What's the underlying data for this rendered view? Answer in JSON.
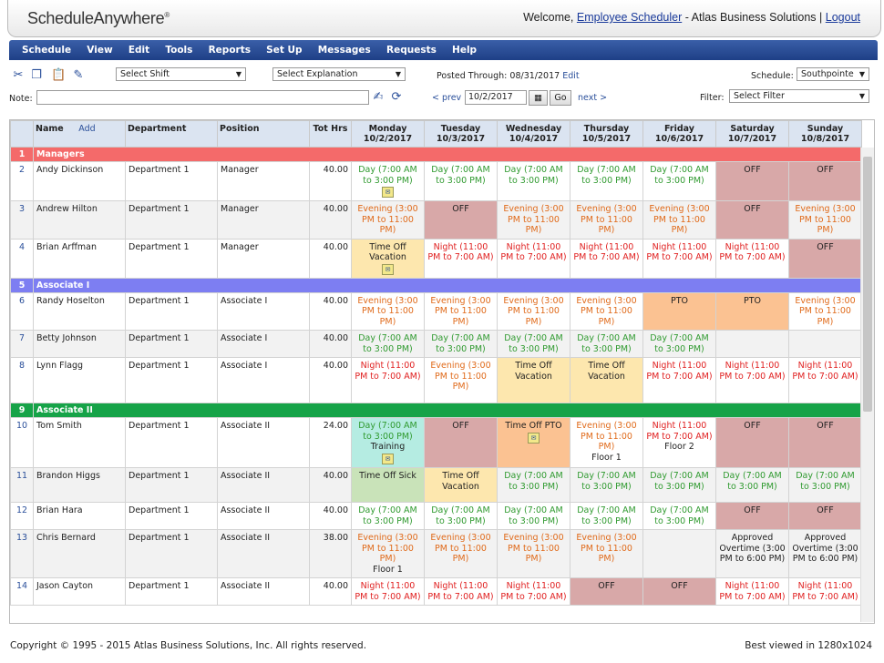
{
  "header": {
    "logo": "ScheduleAnywhere",
    "logo_mark": "®",
    "welcome_prefix": "Welcome,",
    "user": "Employee Scheduler",
    "company": "- Atlas Business Solutions |",
    "logout": "Logout"
  },
  "menu": [
    "Schedule",
    "View",
    "Edit",
    "Tools",
    "Reports",
    "Set Up",
    "Messages",
    "Requests",
    "Help"
  ],
  "toolbar": {
    "select_shift": "Select Shift",
    "select_explanation": "Select Explanation",
    "posted_label": "Posted Through:",
    "posted_date": "08/31/2017",
    "edit_link": "Edit",
    "schedule_label": "Schedule:",
    "schedule_value": "Southpointe",
    "note_label": "Note:",
    "prev": "< prev",
    "date": "10/2/2017",
    "go": "Go",
    "next": "next >",
    "filter_label": "Filter:",
    "filter_value": "Select Filter"
  },
  "columns": {
    "name": "Name",
    "add": "Add",
    "department": "Department",
    "position": "Position",
    "tot_hrs": "Tot Hrs",
    "days": [
      {
        "day": "Monday",
        "date": "10/2/2017"
      },
      {
        "day": "Tuesday",
        "date": "10/3/2017"
      },
      {
        "day": "Wednesday",
        "date": "10/4/2017"
      },
      {
        "day": "Thursday",
        "date": "10/5/2017"
      },
      {
        "day": "Friday",
        "date": "10/6/2017"
      },
      {
        "day": "Saturday",
        "date": "10/7/2017"
      },
      {
        "day": "Sunday",
        "date": "10/8/2017"
      }
    ]
  },
  "colors": {
    "managers": "#f46a6a",
    "associate1": "#7d7ef2",
    "associate2": "#16a348"
  },
  "rows": [
    {
      "type": "group",
      "num": "1",
      "label": "Managers",
      "color": "#f46a6a"
    },
    {
      "type": "emp",
      "num": "2",
      "name": "Andy Dickinson",
      "dept": "Department 1",
      "pos": "Manager",
      "hrs": "40.00",
      "cells": [
        {
          "cls": "day",
          "text": "Day (7:00 AM to 3:00 PM)",
          "note": true
        },
        {
          "cls": "day",
          "text": "Day (7:00 AM to 3:00 PM)"
        },
        {
          "cls": "day",
          "text": "Day (7:00 AM to 3:00 PM)"
        },
        {
          "cls": "day",
          "text": "Day (7:00 AM to 3:00 PM)"
        },
        {
          "cls": "day",
          "text": "Day (7:00 AM to 3:00 PM)"
        },
        {
          "cls": "off",
          "text": "OFF"
        },
        {
          "cls": "off",
          "text": "OFF"
        }
      ]
    },
    {
      "type": "emp",
      "num": "3",
      "name": "Andrew Hilton",
      "dept": "Department 1",
      "pos": "Manager",
      "hrs": "40.00",
      "cells": [
        {
          "cls": "eve",
          "text": "Evening (3:00 PM to 11:00 PM)"
        },
        {
          "cls": "off",
          "text": "OFF"
        },
        {
          "cls": "eve",
          "text": "Evening (3:00 PM to 11:00 PM)"
        },
        {
          "cls": "eve",
          "text": "Evening (3:00 PM to 11:00 PM)"
        },
        {
          "cls": "eve",
          "text": "Evening (3:00 PM to 11:00 PM)"
        },
        {
          "cls": "off",
          "text": "OFF"
        },
        {
          "cls": "eve",
          "text": "Evening (3:00 PM to 11:00 PM)"
        }
      ]
    },
    {
      "type": "emp",
      "num": "4",
      "name": "Brian Arffman",
      "dept": "Department 1",
      "pos": "Manager",
      "hrs": "40.00",
      "cells": [
        {
          "cls": "vac",
          "text": "Time Off Vacation",
          "note": true
        },
        {
          "cls": "ngt",
          "text": "Night (11:00 PM to 7:00 AM)"
        },
        {
          "cls": "ngt",
          "text": "Night (11:00 PM to 7:00 AM)"
        },
        {
          "cls": "ngt",
          "text": "Night (11:00 PM to 7:00 AM)"
        },
        {
          "cls": "ngt",
          "text": "Night (11:00 PM to 7:00 AM)"
        },
        {
          "cls": "ngt",
          "text": "Night (11:00 PM to 7:00 AM)"
        },
        {
          "cls": "off",
          "text": "OFF"
        }
      ]
    },
    {
      "type": "group",
      "num": "5",
      "label": "Associate I",
      "color": "#7d7ef2"
    },
    {
      "type": "emp",
      "num": "6",
      "name": "Randy Hoselton",
      "dept": "Department 1",
      "pos": "Associate I",
      "hrs": "40.00",
      "cells": [
        {
          "cls": "eve",
          "text": "Evening (3:00 PM to 11:00 PM)"
        },
        {
          "cls": "eve",
          "text": "Evening (3:00 PM to 11:00 PM)"
        },
        {
          "cls": "eve",
          "text": "Evening (3:00 PM to 11:00 PM)"
        },
        {
          "cls": "eve",
          "text": "Evening (3:00 PM to 11:00 PM)"
        },
        {
          "cls": "pto",
          "text": "PTO"
        },
        {
          "cls": "pto",
          "text": "PTO"
        },
        {
          "cls": "eve",
          "text": "Evening (3:00 PM to 11:00 PM)"
        }
      ]
    },
    {
      "type": "emp",
      "num": "7",
      "name": "Betty Johnson",
      "dept": "Department 1",
      "pos": "Associate I",
      "hrs": "40.00",
      "cells": [
        {
          "cls": "day",
          "text": "Day (7:00 AM to 3:00 PM)"
        },
        {
          "cls": "day",
          "text": "Day (7:00 AM to 3:00 PM)"
        },
        {
          "cls": "day",
          "text": "Day (7:00 AM to 3:00 PM)"
        },
        {
          "cls": "day",
          "text": "Day (7:00 AM to 3:00 PM)"
        },
        {
          "cls": "day",
          "text": "Day (7:00 AM to 3:00 PM)"
        },
        {
          "cls": "empty",
          "text": ""
        },
        {
          "cls": "empty",
          "text": ""
        }
      ]
    },
    {
      "type": "emp",
      "num": "8",
      "name": "Lynn Flagg",
      "dept": "Department 1",
      "pos": "Associate I",
      "hrs": "40.00",
      "cells": [
        {
          "cls": "ngt",
          "text": "Night (11:00 PM to 7:00 AM)"
        },
        {
          "cls": "eve",
          "text": "Evening (3:00 PM to 11:00 PM)"
        },
        {
          "cls": "vac",
          "text": "Time Off Vacation"
        },
        {
          "cls": "vac",
          "text": "Time Off Vacation"
        },
        {
          "cls": "ngt",
          "text": "Night (11:00 PM to 7:00 AM)"
        },
        {
          "cls": "ngt",
          "text": "Night (11:00 PM to 7:00 AM)"
        },
        {
          "cls": "ngt",
          "text": "Night (11:00 PM to 7:00 AM)"
        }
      ]
    },
    {
      "type": "group",
      "num": "9",
      "label": "Associate II",
      "color": "#16a348"
    },
    {
      "type": "emp",
      "num": "10",
      "name": "Tom Smith",
      "dept": "Department 1",
      "pos": "Associate II",
      "hrs": "24.00",
      "cells": [
        {
          "cls": "train day",
          "text": "Day (7:00 AM to 3:00 PM)",
          "sub": "Training",
          "note": true
        },
        {
          "cls": "off",
          "text": "OFF"
        },
        {
          "cls": "pto",
          "text": "Time Off PTO",
          "note": true
        },
        {
          "cls": "eve",
          "text": "Evening (3:00 PM to 11:00 PM)",
          "sub": "Floor 1"
        },
        {
          "cls": "ngt",
          "text": "Night (11:00 PM to 7:00 AM)",
          "sub": "Floor 2"
        },
        {
          "cls": "off",
          "text": "OFF"
        },
        {
          "cls": "off",
          "text": "OFF"
        }
      ]
    },
    {
      "type": "emp",
      "num": "11",
      "name": "Brandon Higgs",
      "dept": "Department 1",
      "pos": "Associate II",
      "hrs": "40.00",
      "cells": [
        {
          "cls": "sick",
          "text": "Time Off Sick"
        },
        {
          "cls": "vac",
          "text": "Time Off Vacation"
        },
        {
          "cls": "day",
          "text": "Day (7:00 AM to 3:00 PM)"
        },
        {
          "cls": "day",
          "text": "Day (7:00 AM to 3:00 PM)"
        },
        {
          "cls": "day",
          "text": "Day (7:00 AM to 3:00 PM)"
        },
        {
          "cls": "day",
          "text": "Day (7:00 AM to 3:00 PM)"
        },
        {
          "cls": "day",
          "text": "Day (7:00 AM to 3:00 PM)"
        }
      ]
    },
    {
      "type": "emp",
      "num": "12",
      "name": "Brian Hara",
      "dept": "Department 1",
      "pos": "Associate II",
      "hrs": "40.00",
      "cells": [
        {
          "cls": "day",
          "text": "Day (7:00 AM to 3:00 PM)"
        },
        {
          "cls": "day",
          "text": "Day (7:00 AM to 3:00 PM)"
        },
        {
          "cls": "day",
          "text": "Day (7:00 AM to 3:00 PM)"
        },
        {
          "cls": "day",
          "text": "Day (7:00 AM to 3:00 PM)"
        },
        {
          "cls": "day",
          "text": "Day (7:00 AM to 3:00 PM)"
        },
        {
          "cls": "off",
          "text": "OFF"
        },
        {
          "cls": "off",
          "text": "OFF"
        }
      ]
    },
    {
      "type": "emp",
      "num": "13",
      "name": "Chris Bernard",
      "dept": "Department 1",
      "pos": "Associate II",
      "hrs": "38.00",
      "cells": [
        {
          "cls": "eve",
          "text": "Evening (3:00 PM to 11:00 PM)",
          "sub": "Floor 1"
        },
        {
          "cls": "eve",
          "text": "Evening (3:00 PM to 11:00 PM)"
        },
        {
          "cls": "eve",
          "text": "Evening (3:00 PM to 11:00 PM)"
        },
        {
          "cls": "eve",
          "text": "Evening (3:00 PM to 11:00 PM)"
        },
        {
          "cls": "empty",
          "text": ""
        },
        {
          "cls": "blk",
          "text": "Approved Overtime (3:00 PM to 6:00 PM)"
        },
        {
          "cls": "blk",
          "text": "Approved Overtime (3:00 PM to 6:00 PM)"
        }
      ]
    },
    {
      "type": "emp",
      "num": "14",
      "name": "Jason Cayton",
      "dept": "Department 1",
      "pos": "Associate II",
      "hrs": "40.00",
      "cells": [
        {
          "cls": "ngt",
          "text": "Night (11:00 PM to 7:00 AM)"
        },
        {
          "cls": "ngt",
          "text": "Night (11:00 PM to 7:00 AM)"
        },
        {
          "cls": "ngt",
          "text": "Night (11:00 PM to 7:00 AM)"
        },
        {
          "cls": "off",
          "text": "OFF"
        },
        {
          "cls": "off",
          "text": "OFF"
        },
        {
          "cls": "ngt",
          "text": "Night (11:00 PM to 7:00 AM)"
        },
        {
          "cls": "ngt",
          "text": "Night (11:00 PM to 7:00 AM)"
        }
      ]
    }
  ],
  "footer": {
    "copyright": "Copyright © 1995 - 2015 Atlas Business Solutions, Inc. All rights reserved.",
    "best_viewed": "Best viewed in 1280x1024"
  }
}
